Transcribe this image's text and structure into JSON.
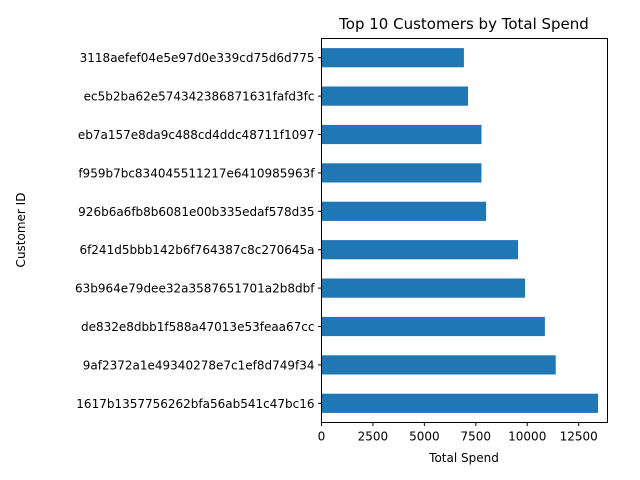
{
  "chart_data": {
    "type": "bar",
    "orientation": "horizontal",
    "title": "Top 10 Customers by Total Spend",
    "xlabel": "Total Spend",
    "ylabel": "Customer ID",
    "xlim": [
      0,
      13900
    ],
    "xticks": [
      0,
      2500,
      5000,
      7500,
      10000,
      12500
    ],
    "grid": false,
    "bar_color": "#1f77b4",
    "categories": [
      "1617b1357756262bfa56ab541c47bc16",
      "9af2372a1e49340278e7c1ef8d749f34",
      "de832e8dbb1f588a47013e53feaa67cc",
      "63b964e79dee32a3587651701a2b8dbf",
      "6f241d5bbb142b6f764387c8c270645a",
      "926b6a6fb8b6081e00b335edaf578d35",
      "f959b7bc834045511217e6410985963f",
      "eb7a157e8da9c488cd4ddc48711f1097",
      "ec5b2ba62e574342386871631fafd3fc",
      "3118aefef04e5e97d0e339cd75d6d775"
    ],
    "values": [
      13440,
      11384,
      10856,
      9889,
      9553,
      7999,
      7775,
      7775,
      7122,
      6922
    ]
  }
}
